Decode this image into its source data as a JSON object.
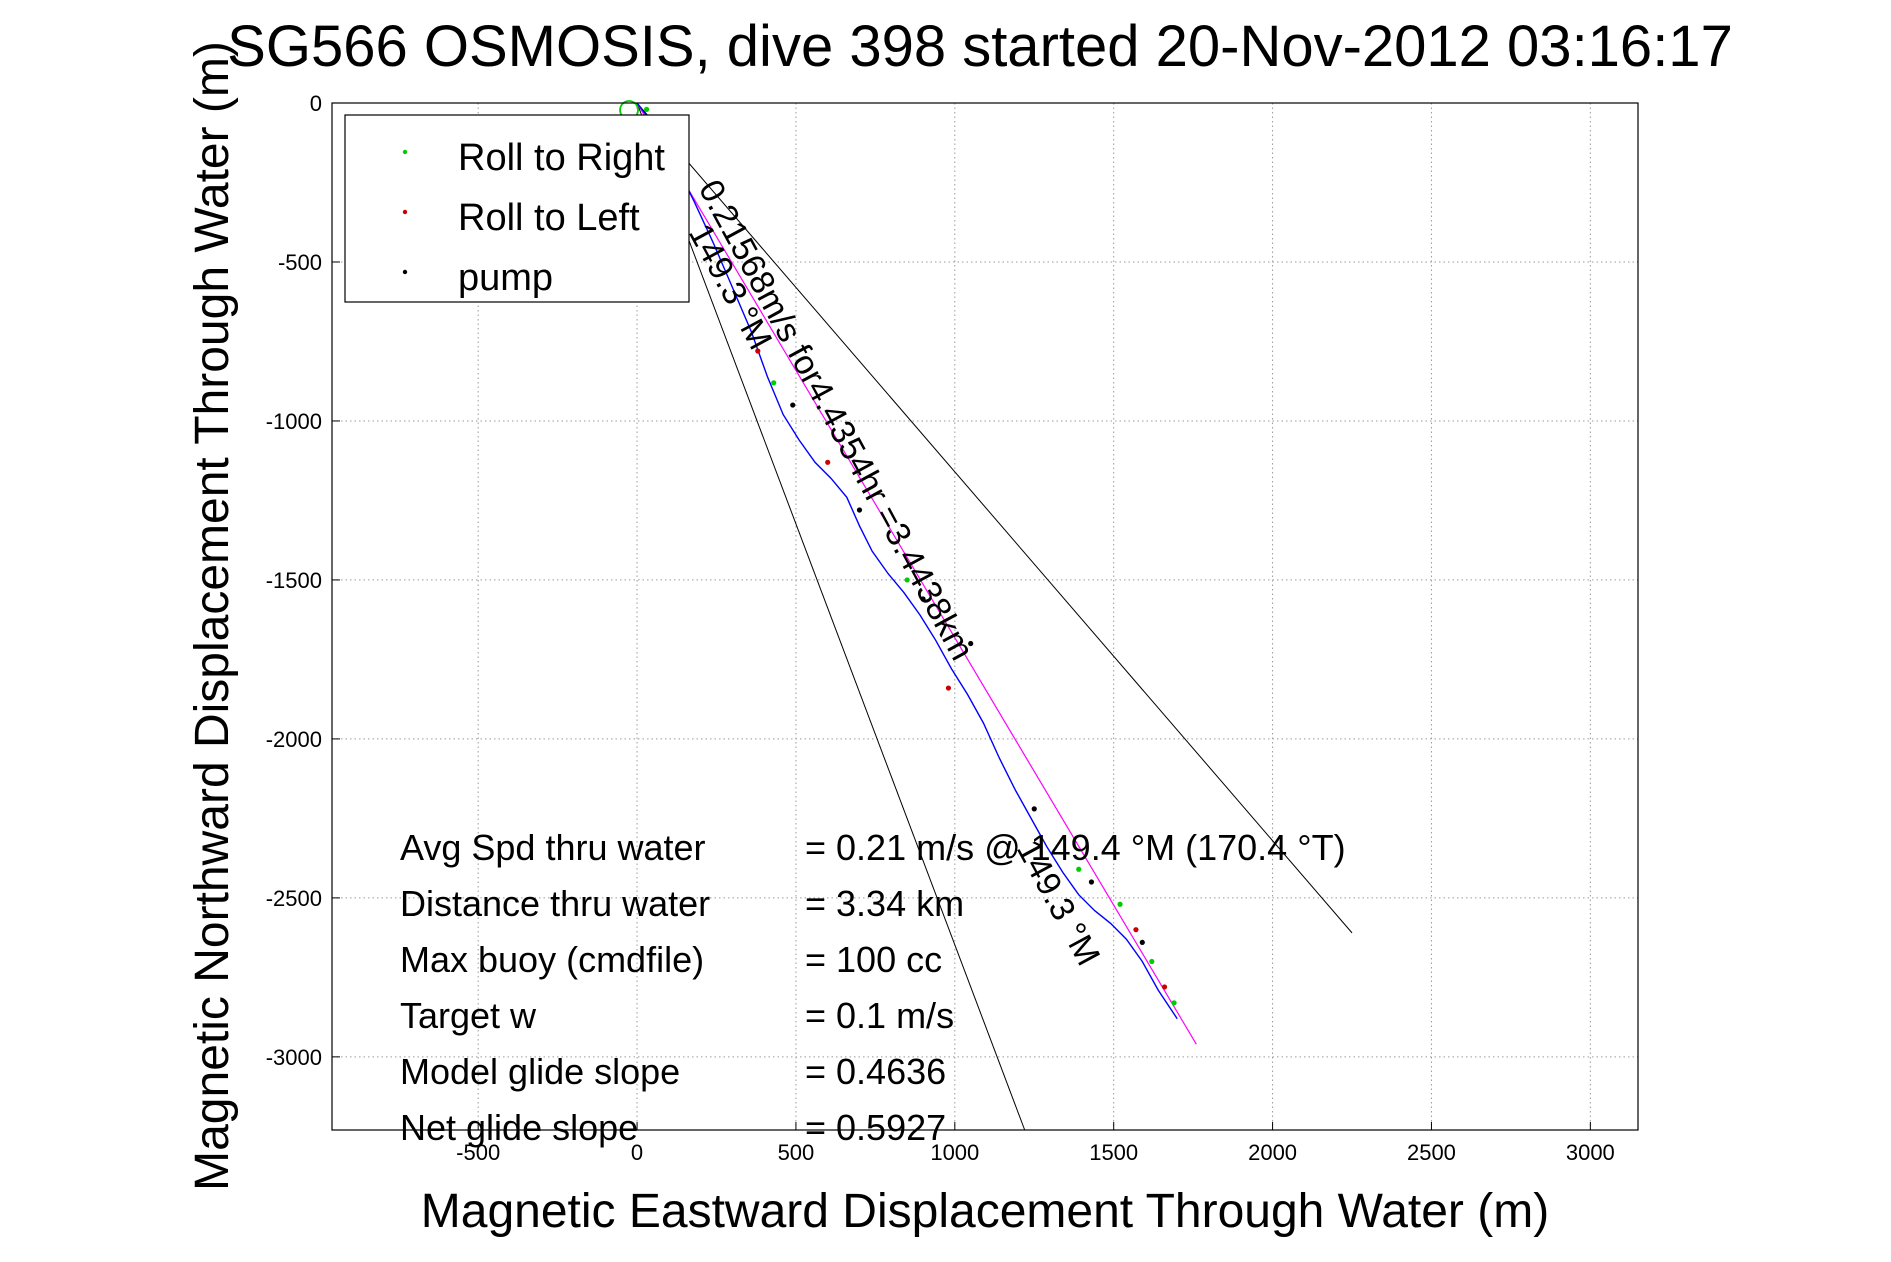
{
  "chart_data": {
    "type": "line",
    "title": "SG566 OSMOSIS, dive 398 started 20-Nov-2012 03:16:17",
    "xlabel": "Magnetic Eastward Displacement Through Water (m)",
    "ylabel": "Magnetic Northward Displacement Through Water (m)",
    "xlim": [
      -960,
      3150
    ],
    "ylim": [
      -3230,
      0
    ],
    "xticks": [
      -500,
      0,
      500,
      1000,
      1500,
      2000,
      2500,
      3000
    ],
    "yticks": [
      0,
      -500,
      -1000,
      -1500,
      -2000,
      -2500,
      -3000
    ],
    "grid": true,
    "legend_position": "top-left",
    "legend": [
      {
        "label": "Roll to Right",
        "color": "#00cc00"
      },
      {
        "label": "Roll to Left",
        "color": "#cc0000"
      },
      {
        "label": "pump",
        "color": "#000000"
      }
    ],
    "track": {
      "name": "track",
      "color": "#0000ff",
      "x": [
        0,
        60,
        120,
        180,
        240,
        300,
        360,
        410,
        460,
        510,
        560,
        610,
        660,
        700,
        740,
        790,
        840,
        890,
        940,
        990,
        1040,
        1090,
        1140,
        1190,
        1240,
        1290,
        1340,
        1390,
        1440,
        1490,
        1540,
        1590,
        1640,
        1700
      ],
      "y": [
        0,
        -80,
        -190,
        -310,
        -440,
        -580,
        -720,
        -860,
        -980,
        -1060,
        -1130,
        -1180,
        -1240,
        -1330,
        -1410,
        -1480,
        -1540,
        -1610,
        -1690,
        -1780,
        -1860,
        -1950,
        -2060,
        -2160,
        -2250,
        -2340,
        -2420,
        -2490,
        -2540,
        -2580,
        -2630,
        -2700,
        -2790,
        -2880
      ]
    },
    "heading_line": {
      "name": "heading",
      "color": "#ff00ff",
      "x": [
        0,
        1760
      ],
      "y": [
        0,
        -2960
      ]
    },
    "bounding_lines": [
      {
        "x": [
          0,
          1220
        ],
        "y": [
          0,
          -3230
        ]
      },
      {
        "x": [
          0,
          2250
        ],
        "y": [
          0,
          -2610
        ]
      }
    ],
    "roll_right": {
      "x": [
        30,
        430,
        850,
        1390,
        1520,
        1620,
        1690
      ],
      "y": [
        -20,
        -880,
        -1500,
        -2410,
        -2520,
        -2700,
        -2830
      ]
    },
    "roll_left": {
      "x": [
        380,
        600,
        980,
        1570,
        1660
      ],
      "y": [
        -780,
        -1130,
        -1840,
        -2600,
        -2780
      ]
    },
    "pump": {
      "x": [
        120,
        490,
        700,
        900,
        1050,
        1250,
        1430,
        1590
      ],
      "y": [
        -150,
        -950,
        -1280,
        -1560,
        -1700,
        -2220,
        -2450,
        -2640
      ]
    },
    "start_marker": {
      "x": [
        0
      ],
      "y": [
        0
      ]
    },
    "rotated_annotations": [
      "0.21568m/s for4.4354hr =3.4438km",
      "149.3 °M",
      "149.3 °M"
    ],
    "stats": [
      {
        "label": "Avg Spd thru water",
        "value": "=  0.21 m/s @ 149.4 °M (170.4 °T)"
      },
      {
        "label": "Distance thru water",
        "value": "=  3.34 km"
      },
      {
        "label": "Max buoy (cmdfile)",
        "value": "= 100 cc"
      },
      {
        "label": "Target w",
        "value": "= 0.1 m/s"
      },
      {
        "label": "Model glide slope",
        "value": "= 0.4636"
      },
      {
        "label": "Net glide slope",
        "value": "= 0.5927"
      }
    ]
  }
}
